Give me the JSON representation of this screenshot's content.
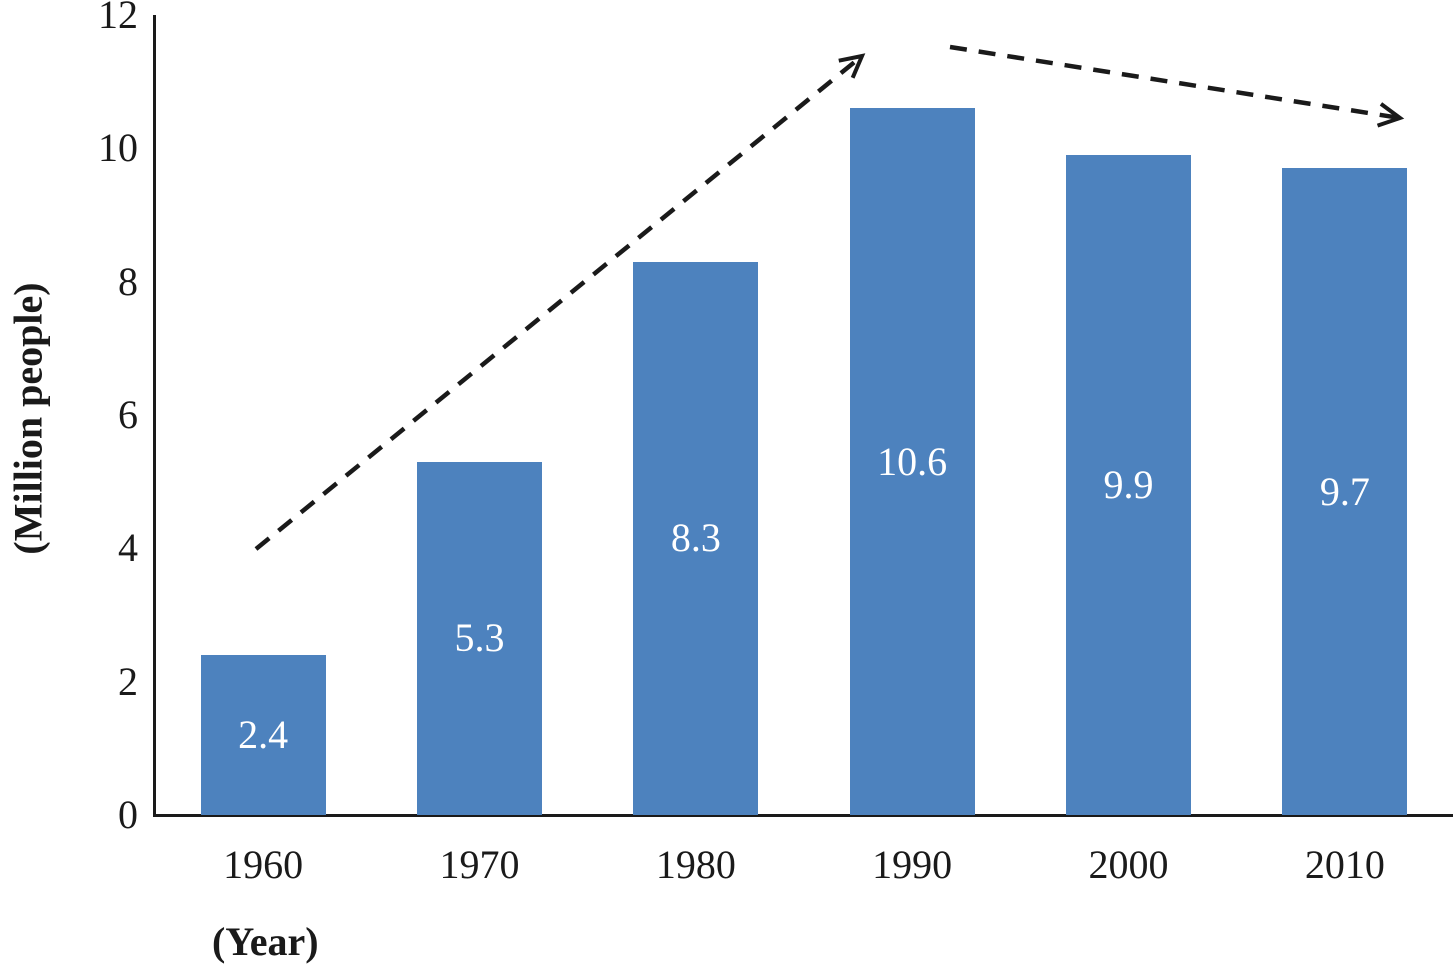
{
  "chart_data": {
    "type": "bar",
    "categories": [
      "1960",
      "1970",
      "1980",
      "1990",
      "2000",
      "2010"
    ],
    "values": [
      2.4,
      5.3,
      8.3,
      10.6,
      9.9,
      9.7
    ],
    "value_labels": [
      "2.4",
      "5.3",
      "8.3",
      "10.6",
      "9.9",
      "9.7"
    ],
    "title": "",
    "xlabel": "(Year)",
    "ylabel": "(Million people)",
    "ylim": [
      0,
      12
    ],
    "yticks": [
      0,
      2,
      4,
      6,
      8,
      10,
      12
    ],
    "grid": false,
    "legend": "none",
    "bar_color": "#4d82be",
    "value_label_color": "#ffffff",
    "axis_color": "#1a1a1a",
    "annotations": [
      {
        "type": "dashed-arrow",
        "name": "rising-trend-arrow",
        "desc": "Dashed arrow rising from above the 1960 bar (about y=4) to above the 1990 bar (about y=11.5)"
      },
      {
        "type": "dashed-arrow",
        "name": "declining-trend-arrow",
        "desc": "Dashed arrow slightly declining from above the 1990 bar to above the 2010 bar"
      }
    ]
  }
}
